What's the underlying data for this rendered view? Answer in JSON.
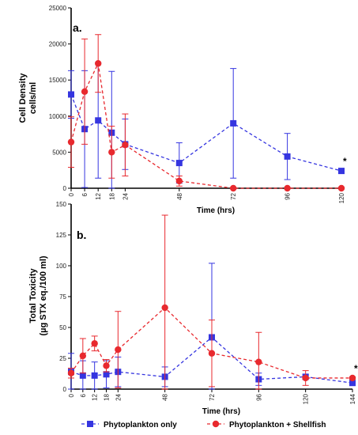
{
  "colors": {
    "blue": "#3535e0",
    "red": "#e8292e",
    "axis": "#000000"
  },
  "legend": [
    {
      "label": "Phytoplankton only",
      "color": "#3535e0",
      "marker": "square"
    },
    {
      "label": "Phytoplankton + Shellfish",
      "color": "#e8292e",
      "marker": "circle"
    }
  ],
  "chart_data": [
    {
      "type": "line",
      "panel_label": "a.",
      "ylabel_lines": [
        "Cell Density",
        "cells/ml"
      ],
      "xlabel": "Time (hrs)",
      "xlim": [
        0,
        120
      ],
      "ylim": [
        0,
        25000
      ],
      "x_ticks": [
        0,
        6,
        12,
        18,
        24,
        48,
        72,
        96,
        120
      ],
      "y_ticks": [
        0,
        5000,
        10000,
        15000,
        20000,
        25000
      ],
      "significance_marker": {
        "x": 120,
        "text": "*"
      },
      "series": [
        {
          "x": [
            0,
            6,
            12,
            18,
            24,
            48,
            72,
            96,
            120
          ],
          "y": [
            13000,
            8200,
            9400,
            7700,
            6100,
            3500,
            9000,
            4400,
            2400
          ],
          "err": [
            3300,
            8100,
            8000,
            8500,
            3500,
            2800,
            7600,
            3200,
            300
          ]
        },
        {
          "x": [
            0,
            6,
            12,
            18,
            24,
            48,
            72,
            96,
            120
          ],
          "y": [
            6400,
            13400,
            17300,
            5000,
            6000,
            1000,
            0,
            0,
            0
          ],
          "err": [
            3500,
            7300,
            4000,
            3600,
            4300,
            700,
            0,
            0,
            0
          ]
        }
      ]
    },
    {
      "type": "line",
      "panel_label": "b.",
      "ylabel_lines": [
        "Total Toxicity",
        "(µg STX eq./100 ml)"
      ],
      "xlabel": "Time (hrs)",
      "xlim": [
        0,
        144
      ],
      "ylim": [
        0,
        150
      ],
      "x_ticks": [
        0,
        6,
        12,
        18,
        24,
        48,
        72,
        96,
        120,
        144
      ],
      "y_ticks": [
        0,
        25,
        50,
        75,
        100,
        125,
        150
      ],
      "significance_marker": {
        "x": 144,
        "text": "*"
      },
      "series": [
        {
          "x": [
            0,
            6,
            12,
            18,
            24,
            48,
            72,
            96,
            120,
            144
          ],
          "y": [
            14,
            11,
            11,
            12,
            14,
            10,
            42,
            8,
            10,
            5
          ],
          "err": [
            15,
            12,
            11,
            11,
            12,
            8,
            60,
            5,
            2,
            2
          ]
        },
        {
          "x": [
            0,
            6,
            12,
            18,
            24,
            48,
            72,
            96,
            120,
            144
          ],
          "y": [
            13,
            27,
            37,
            19,
            32,
            66,
            29,
            22,
            9,
            9
          ],
          "err": [
            4,
            14,
            6,
            5,
            31,
            75,
            27,
            24,
            6,
            1
          ]
        }
      ]
    }
  ]
}
